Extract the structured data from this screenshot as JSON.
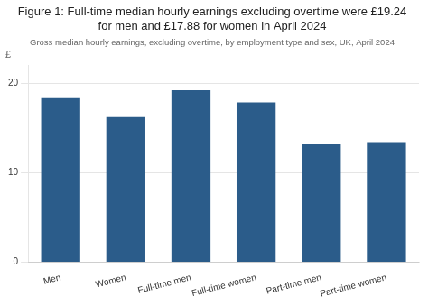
{
  "chart_data": {
    "type": "bar",
    "title": "Figure 1: Full-time median hourly earnings excluding overtime were £19.24\nfor men and £17.88 for women in April 2024",
    "subtitle": "Gross median hourly earnings, excluding overtime, by employment type and sex, UK, April 2024",
    "ylabel": "£",
    "categories": [
      "Men",
      "Women",
      "Full-time men",
      "Full-time women",
      "Part-time men",
      "Part-time women"
    ],
    "values": [
      18.35,
      16.24,
      19.24,
      17.88,
      13.19,
      13.44
    ],
    "color": "#2b5c8a",
    "ylim": [
      0,
      22
    ],
    "yticks": [
      0,
      10,
      20
    ],
    "grid": true
  }
}
